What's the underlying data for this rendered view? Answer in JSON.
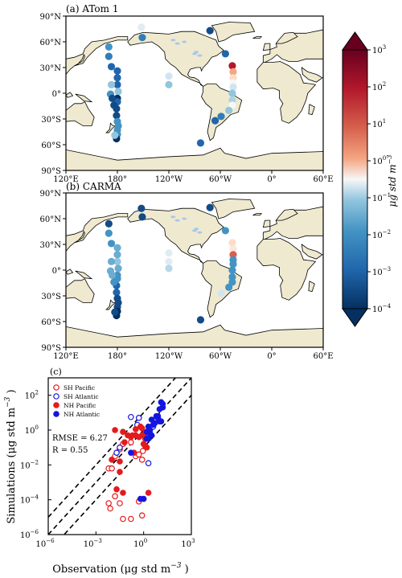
{
  "chart_data": [
    {
      "type": "scatter",
      "panel": "map",
      "title": "(a) ATom 1",
      "lon_ticks": [
        "120°E",
        "180°",
        "120°W",
        "60°W",
        "0°",
        "60°E"
      ],
      "lat_ticks": [
        "90°N",
        "60°N",
        "30°N",
        "0°",
        "30°S",
        "60°S",
        "90°S"
      ],
      "xlim": [
        120,
        420
      ],
      "ylim": [
        -90,
        90
      ],
      "points": [
        [
          180,
          26,
          -3
        ],
        [
          180,
          18,
          -3
        ],
        [
          180,
          10,
          -3
        ],
        [
          181,
          2,
          -1
        ],
        [
          180,
          -6,
          -4
        ],
        [
          180,
          -10,
          -3
        ],
        [
          179,
          -18,
          -3.5
        ],
        [
          179,
          -26,
          -3.5
        ],
        [
          180,
          -33,
          -2
        ],
        [
          181,
          -38,
          -2
        ],
        [
          180,
          -43,
          -2
        ],
        [
          180,
          -48,
          -2
        ],
        [
          179,
          -53,
          -4
        ],
        [
          177,
          -49,
          -1
        ],
        [
          170,
          54,
          -2
        ],
        [
          170,
          43,
          -2.5
        ],
        [
          173,
          31,
          -3
        ],
        [
          173,
          10,
          -1
        ],
        [
          172,
          -1,
          -2
        ],
        [
          174,
          -6,
          -3.5
        ],
        [
          176,
          -14,
          -3.5
        ],
        [
          208,
          77,
          -0.3
        ],
        [
          209,
          65,
          -2.5
        ],
        [
          240,
          20,
          -0.5
        ],
        [
          240,
          10,
          -1
        ],
        [
          277,
          -58,
          -3
        ],
        [
          288,
          73,
          -3.5
        ],
        [
          306,
          46,
          -3
        ],
        [
          314,
          32,
          2
        ],
        [
          315,
          25,
          1
        ],
        [
          315,
          18,
          0.5
        ],
        [
          315,
          12,
          0
        ],
        [
          315,
          7,
          -0.5
        ],
        [
          314,
          0,
          -1
        ],
        [
          314,
          -8,
          -0.8
        ],
        [
          314,
          -14,
          0
        ],
        [
          310,
          -20,
          -1
        ],
        [
          301,
          -27,
          -2.5
        ],
        [
          294,
          -32,
          -3
        ]
      ]
    },
    {
      "type": "scatter",
      "panel": "map",
      "title": "(b) CARMA",
      "lon_ticks": [
        "120°E",
        "180°",
        "120°W",
        "60°W",
        "0°",
        "60°E"
      ],
      "lat_ticks": [
        "90°N",
        "60°N",
        "30°N",
        "0°",
        "30°S",
        "60°S",
        "90°S"
      ],
      "xlim": [
        120,
        420
      ],
      "ylim": [
        -90,
        90
      ],
      "points": [
        [
          180,
          26,
          -1.5
        ],
        [
          180,
          18,
          -1.5
        ],
        [
          180,
          10,
          -1
        ],
        [
          181,
          2,
          -1.5
        ],
        [
          180,
          -6,
          -2
        ],
        [
          180,
          -10,
          -2
        ],
        [
          179,
          -18,
          -3
        ],
        [
          179,
          -26,
          -3
        ],
        [
          180,
          -33,
          -3.5
        ],
        [
          181,
          -38,
          -3.5
        ],
        [
          180,
          -43,
          -3.5
        ],
        [
          180,
          -48,
          -4
        ],
        [
          179,
          -53,
          -4
        ],
        [
          177,
          -49,
          -3.5
        ],
        [
          170,
          54,
          -3.5
        ],
        [
          170,
          43,
          -2
        ],
        [
          173,
          31,
          -2
        ],
        [
          173,
          10,
          -1.5
        ],
        [
          172,
          -1,
          -1.5
        ],
        [
          174,
          -6,
          -1.5
        ],
        [
          176,
          -14,
          -2
        ],
        [
          208,
          72,
          -3.5
        ],
        [
          209,
          62,
          -3.5
        ],
        [
          240,
          20,
          -0.3
        ],
        [
          240,
          10,
          -0.3
        ],
        [
          240,
          2,
          -0.7
        ],
        [
          277,
          -58,
          -3.5
        ],
        [
          288,
          73,
          -3.5
        ],
        [
          306,
          46,
          -2
        ],
        [
          314,
          32,
          0.5
        ],
        [
          315,
          25,
          0.3
        ],
        [
          315,
          18,
          1.5
        ],
        [
          315,
          12,
          -2
        ],
        [
          315,
          7,
          -2
        ],
        [
          314,
          0,
          -2
        ],
        [
          314,
          -8,
          -2
        ],
        [
          314,
          -14,
          -2
        ],
        [
          310,
          -20,
          -2
        ],
        [
          301,
          -27,
          -0.5
        ]
      ]
    },
    {
      "type": "colorbar",
      "label": "μg std m",
      "label_exp": "−3",
      "ticks": [
        "10",
        "10",
        "10",
        "10",
        "10",
        "10",
        "10",
        "10"
      ],
      "tick_exps": [
        "3",
        "2",
        "1",
        "0",
        "−1",
        "−2",
        "−3",
        "−4"
      ],
      "range_log10": [
        -4,
        3
      ]
    },
    {
      "type": "scatter",
      "panel": "scatter",
      "title": "(c)",
      "xlabel": "Observation (μg std m",
      "xlabel_exp": "−3",
      "xlabel_end": " )",
      "ylabel": "Simulations (μg std m",
      "ylabel_exp": "−3",
      "ylabel_end": " )",
      "xlim_log10": [
        -6,
        3
      ],
      "ylim_log10": [
        -6,
        3
      ],
      "xticks": [
        "10",
        "10",
        "10",
        "10"
      ],
      "xtick_exps": [
        "−6",
        "−3",
        "0",
        "3"
      ],
      "yticks": [
        "10",
        "10",
        "10",
        "10",
        "10"
      ],
      "ytick_exps": [
        "−6",
        "−4",
        "−2",
        "0",
        "2"
      ],
      "rmse_label": "RMSE = 6.27",
      "r_label": "R    = 0.55",
      "legend": [
        "SH Pacific",
        "SH Atlantic",
        "NH Pacific",
        "NH Atlantic"
      ],
      "colors": {
        "pacific": "#e41a1c",
        "atlantic": "#1515e0"
      },
      "lines": [
        "1:1",
        "1:10",
        "10:1"
      ],
      "series": [
        {
          "name": "SH Pacific",
          "filled": false,
          "color": "#e41a1c",
          "points": [
            [
              -2.2,
              -2.2
            ],
            [
              -2,
              -2.2
            ],
            [
              -1.8,
              -1.5
            ],
            [
              -1.5,
              -1.1
            ],
            [
              -1.3,
              -0.8
            ],
            [
              -0.8,
              -0.7
            ],
            [
              -0.5,
              -1.5
            ],
            [
              -0.3,
              -1.4
            ],
            [
              -0.1,
              -1.7
            ],
            [
              -0.05,
              -1.2
            ],
            [
              -1.8,
              -3.8
            ],
            [
              -2.2,
              -4.2
            ],
            [
              -2.1,
              -4.5
            ],
            [
              -1.5,
              -4.2
            ],
            [
              -1.3,
              -5.1
            ],
            [
              -0.8,
              -5.1
            ],
            [
              -0.3,
              -4.1
            ],
            [
              -0.1,
              -4.9
            ]
          ]
        },
        {
          "name": "SH Atlantic",
          "filled": false,
          "color": "#1515e0",
          "points": [
            [
              -0.8,
              0.75
            ],
            [
              -0.3,
              0.7
            ],
            [
              -1.7,
              -1.3
            ],
            [
              -1.5,
              -1.0
            ],
            [
              0.3,
              -1.9
            ],
            [
              0.6,
              0.2
            ],
            [
              -0.4,
              0.3
            ]
          ]
        },
        {
          "name": "NH Pacific",
          "filled": true,
          "color": "#e41a1c",
          "points": [
            [
              -1.3,
              -0.1
            ],
            [
              -0.8,
              -0.4
            ],
            [
              -0.5,
              -0.3
            ],
            [
              -1.0,
              -0.3
            ],
            [
              -0.7,
              -0.3
            ],
            [
              -0.3,
              -0.4
            ],
            [
              -0.1,
              -0.3
            ],
            [
              0.1,
              -0.2
            ],
            [
              0.1,
              -0.9
            ],
            [
              0.2,
              -1.0
            ],
            [
              -0.5,
              0.05
            ],
            [
              -0.1,
              0.1
            ],
            [
              -0.6,
              -1.3
            ],
            [
              -1.2,
              -0.7
            ],
            [
              0.0,
              -0.8
            ],
            [
              -1.8,
              0.0
            ],
            [
              -0.2,
              0.2
            ],
            [
              0.1,
              -0.5
            ],
            [
              -1.5,
              -1.8
            ],
            [
              -2.0,
              -1.7
            ],
            [
              0.3,
              -3.6
            ],
            [
              -1.7,
              -3.4
            ],
            [
              -1.3,
              -3.6
            ],
            [
              -1.5,
              -2.4
            ]
          ]
        },
        {
          "name": "NH Atlantic",
          "filled": true,
          "color": "#1515e0",
          "points": [
            [
              0.2,
              -0.1
            ],
            [
              0.4,
              -0.2
            ],
            [
              0.5,
              -0.3
            ],
            [
              0.6,
              0.3
            ],
            [
              0.9,
              0.8
            ],
            [
              1.1,
              1.6
            ],
            [
              1.2,
              1.3
            ],
            [
              1.0,
              0.5
            ],
            [
              0.3,
              0.2
            ],
            [
              0.5,
              0.6
            ],
            [
              1.1,
              0.5
            ],
            [
              0.8,
              0.8
            ],
            [
              0.9,
              0.7
            ],
            [
              1.2,
              1.5
            ],
            [
              1.0,
              1.2
            ],
            [
              0.7,
              0.4
            ],
            [
              0.3,
              -0.5
            ],
            [
              0.0,
              -3.95
            ],
            [
              -0.2,
              -3.95
            ],
            [
              -0.8,
              -1.3
            ],
            [
              0.2,
              -0.5
            ],
            [
              0.4,
              0.0
            ]
          ]
        }
      ]
    }
  ]
}
